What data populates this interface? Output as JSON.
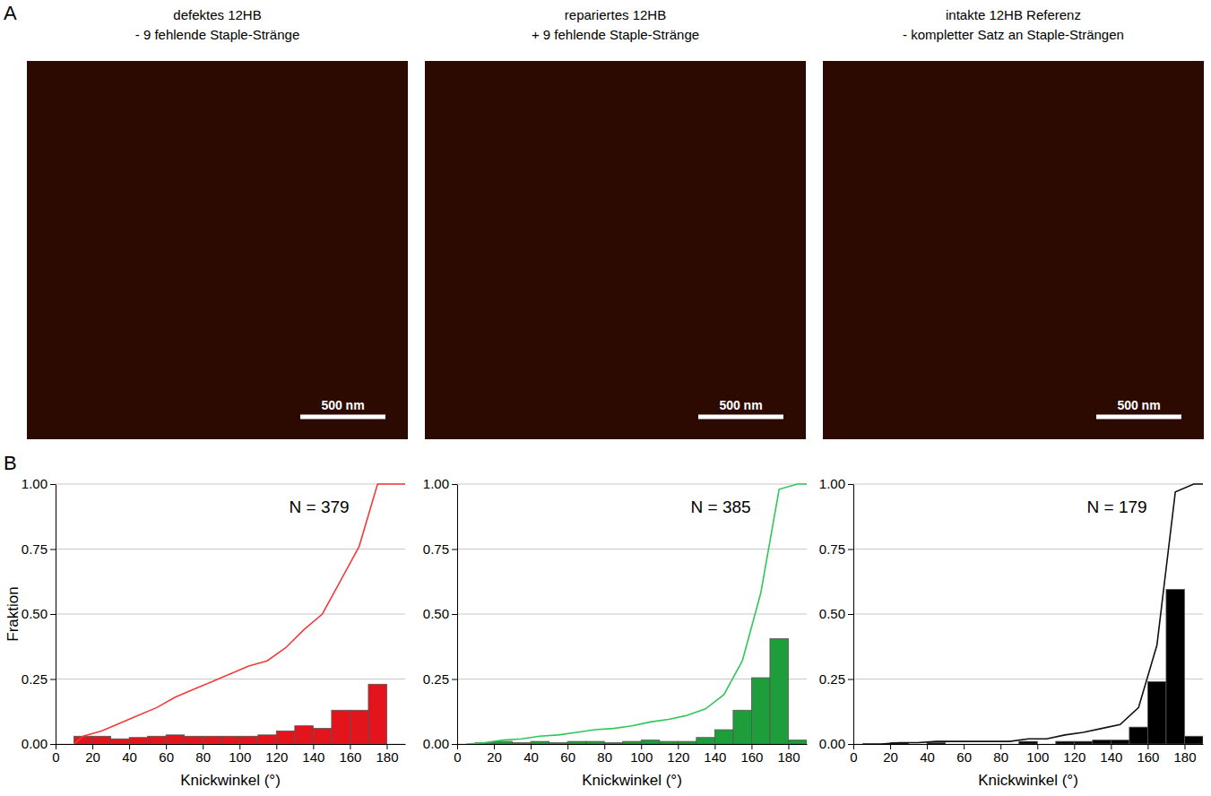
{
  "panel_labels": [
    "A",
    "B"
  ],
  "images": [
    {
      "title": "defektes 12HB",
      "subtitle": "- 9 fehlende Staple-Stränge",
      "scale_bar": "500 nm"
    },
    {
      "title": "repariertes 12HB",
      "subtitle": "+ 9 fehlende Staple-Stränge",
      "scale_bar": "500 nm"
    },
    {
      "title": "intakte 12HB Referenz",
      "subtitle": "- kompletter Satz an Staple-Strängen",
      "scale_bar": "500 nm"
    }
  ],
  "chart_data": [
    {
      "type": "histogram",
      "x_label": "Knickwinkel (°)",
      "y_label": "Fraktion",
      "annotation": "N = 379",
      "bins": [
        0,
        10,
        20,
        30,
        40,
        50,
        60,
        70,
        80,
        90,
        100,
        110,
        120,
        130,
        140,
        150,
        160,
        170,
        180,
        190
      ],
      "xlim": [
        0,
        190
      ],
      "xticks": [
        0,
        20,
        40,
        60,
        80,
        100,
        120,
        140,
        160,
        180
      ],
      "ylim": [
        0,
        1
      ],
      "yticks": [
        {
          "value": 0,
          "label": "0.00"
        },
        {
          "value": 0.25,
          "label": "0.25"
        },
        {
          "value": 0.5,
          "label": "0.50"
        },
        {
          "value": 0.75,
          "label": "0.75"
        },
        {
          "value": 1,
          "label": "1.00"
        }
      ],
      "grid": true,
      "series": [
        {
          "type": "bar",
          "color": "#e3141b",
          "values": [
            0,
            0.03,
            0.03,
            0.02,
            0.025,
            0.03,
            0.035,
            0.03,
            0.03,
            0.03,
            0.03,
            0.035,
            0.05,
            0.07,
            0.06,
            0.13,
            0.13,
            0.23,
            0
          ]
        },
        {
          "type": "line",
          "color": "#f03c3c",
          "x": [
            10,
            15,
            25,
            35,
            45,
            55,
            65,
            75,
            85,
            95,
            105,
            115,
            125,
            135,
            145,
            155,
            165,
            175,
            185,
            190
          ],
          "values": [
            0,
            0.03,
            0.05,
            0.08,
            0.11,
            0.14,
            0.18,
            0.21,
            0.24,
            0.27,
            0.3,
            0.32,
            0.37,
            0.44,
            0.5,
            0.63,
            0.76,
            1,
            1,
            1
          ]
        }
      ]
    },
    {
      "type": "histogram",
      "x_label": "Knickwinkel (°)",
      "annotation": "N = 385",
      "bins": [
        0,
        10,
        20,
        30,
        40,
        50,
        60,
        70,
        80,
        90,
        100,
        110,
        120,
        130,
        140,
        150,
        160,
        170,
        180,
        190
      ],
      "xlim": [
        0,
        190
      ],
      "xticks": [
        0,
        20,
        40,
        60,
        80,
        100,
        120,
        140,
        160,
        180
      ],
      "ylim": [
        0,
        1
      ],
      "yticks": [
        {
          "value": 0,
          "label": "0.00"
        },
        {
          "value": 0.25,
          "label": "0.25"
        },
        {
          "value": 0.5,
          "label": "0.50"
        },
        {
          "value": 0.75,
          "label": "0.75"
        },
        {
          "value": 1,
          "label": "1.00"
        }
      ],
      "grid": true,
      "series": [
        {
          "type": "bar",
          "color": "#1e9e3a",
          "values": [
            0,
            0.005,
            0.01,
            0.005,
            0.01,
            0.005,
            0.01,
            0.01,
            0.005,
            0.01,
            0.015,
            0.01,
            0.01,
            0.025,
            0.055,
            0.13,
            0.255,
            0.405,
            0.015
          ]
        },
        {
          "type": "line",
          "color": "#2fc75a",
          "x": [
            5,
            15,
            25,
            35,
            45,
            55,
            65,
            75,
            85,
            95,
            105,
            115,
            125,
            135,
            145,
            155,
            165,
            175,
            185,
            190
          ],
          "values": [
            0,
            0.005,
            0.015,
            0.02,
            0.03,
            0.035,
            0.045,
            0.055,
            0.06,
            0.07,
            0.085,
            0.095,
            0.11,
            0.135,
            0.19,
            0.32,
            0.58,
            0.98,
            1,
            1
          ]
        }
      ]
    },
    {
      "type": "histogram",
      "x_label": "Knickwinkel (°)",
      "annotation": "N = 179",
      "bins": [
        0,
        10,
        20,
        30,
        40,
        50,
        60,
        70,
        80,
        90,
        100,
        110,
        120,
        130,
        140,
        150,
        160,
        170,
        180,
        190
      ],
      "xlim": [
        0,
        190
      ],
      "xticks": [
        0,
        20,
        40,
        60,
        80,
        100,
        120,
        140,
        160,
        180
      ],
      "ylim": [
        0,
        1
      ],
      "yticks": [
        {
          "value": 0,
          "label": "0.00"
        },
        {
          "value": 0.25,
          "label": "0.25"
        },
        {
          "value": 0.5,
          "label": "0.50"
        },
        {
          "value": 0.75,
          "label": "0.75"
        },
        {
          "value": 1,
          "label": "1.00"
        }
      ],
      "grid": true,
      "series": [
        {
          "type": "bar",
          "color": "#000000",
          "values": [
            0,
            0,
            0.005,
            0,
            0.005,
            0,
            0,
            0,
            0,
            0.01,
            0,
            0.01,
            0.01,
            0.015,
            0.015,
            0.065,
            0.24,
            0.595,
            0.03
          ]
        },
        {
          "type": "line",
          "color": "#111111",
          "x": [
            5,
            15,
            25,
            35,
            45,
            55,
            65,
            75,
            85,
            95,
            105,
            115,
            125,
            135,
            145,
            155,
            165,
            175,
            185,
            190
          ],
          "values": [
            0,
            0,
            0.005,
            0.005,
            0.01,
            0.01,
            0.01,
            0.01,
            0.01,
            0.02,
            0.02,
            0.035,
            0.045,
            0.06,
            0.075,
            0.14,
            0.38,
            0.97,
            1,
            1
          ]
        }
      ]
    }
  ]
}
